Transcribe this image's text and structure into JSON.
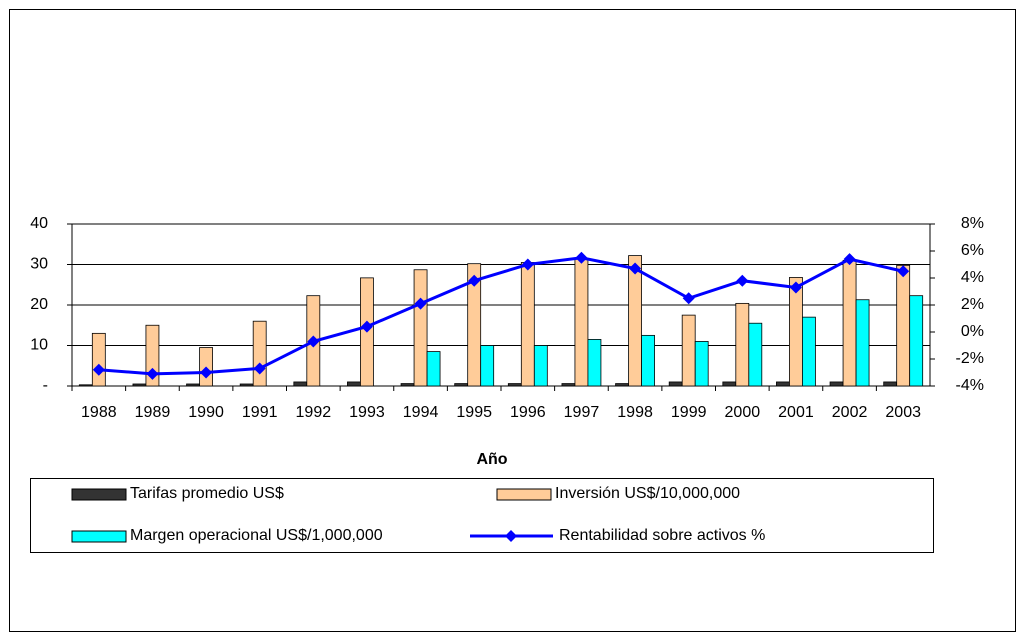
{
  "chart_data": {
    "type": "bar",
    "x_label": "Año",
    "categories": [
      "1988",
      "1989",
      "1990",
      "1991",
      "1992",
      "1993",
      "1994",
      "1995",
      "1996",
      "1997",
      "1998",
      "1999",
      "2000",
      "2001",
      "2002",
      "2003"
    ],
    "series": [
      {
        "name": "Tarifas promedio US$",
        "color": "#333333",
        "values": [
          0.3,
          0.5,
          0.5,
          0.5,
          1,
          1,
          0.6,
          0.6,
          0.6,
          0.6,
          0.6,
          1,
          1,
          1,
          1,
          1
        ]
      },
      {
        "name": "Inversión US$/10,000,000",
        "color": "#ffcc99",
        "values": [
          13,
          15,
          9.5,
          16,
          22.3,
          26.7,
          28.7,
          30.2,
          30.5,
          31.5,
          32.2,
          17.5,
          20.4,
          26.8,
          31,
          29.8
        ]
      },
      {
        "name": "Margen operacional US$/1,000,000",
        "color": "#00ffff",
        "values": [
          0,
          0,
          0,
          0,
          0,
          0,
          8.5,
          10,
          10,
          11.5,
          12.5,
          11,
          15.5,
          17,
          21.3,
          22.3
        ]
      },
      {
        "name": "Rentabilidad sobre activos %",
        "color": "#0000ff",
        "type": "line",
        "axis": "y2",
        "values": [
          -2.8,
          -3.1,
          -3.0,
          -2.7,
          -0.7,
          0.4,
          2.1,
          3.8,
          5.0,
          5.5,
          4.7,
          2.5,
          3.8,
          3.3,
          5.4,
          4.5
        ]
      }
    ],
    "ylim": [
      0,
      40
    ],
    "yticks": [
      {
        "value": 0,
        "label": "-"
      },
      10,
      20,
      30,
      40
    ],
    "y2lim": [
      -4,
      8
    ],
    "y2ticks": [
      {
        "value": -4,
        "label": "-4%"
      },
      {
        "value": -2,
        "label": "-2%"
      },
      {
        "value": 0,
        "label": "0%"
      },
      {
        "value": 2,
        "label": "2%"
      },
      {
        "value": 4,
        "label": "4%"
      },
      {
        "value": 6,
        "label": "6%"
      },
      {
        "value": 8,
        "label": "8%"
      }
    ],
    "grid": true,
    "legend": "bottom"
  }
}
